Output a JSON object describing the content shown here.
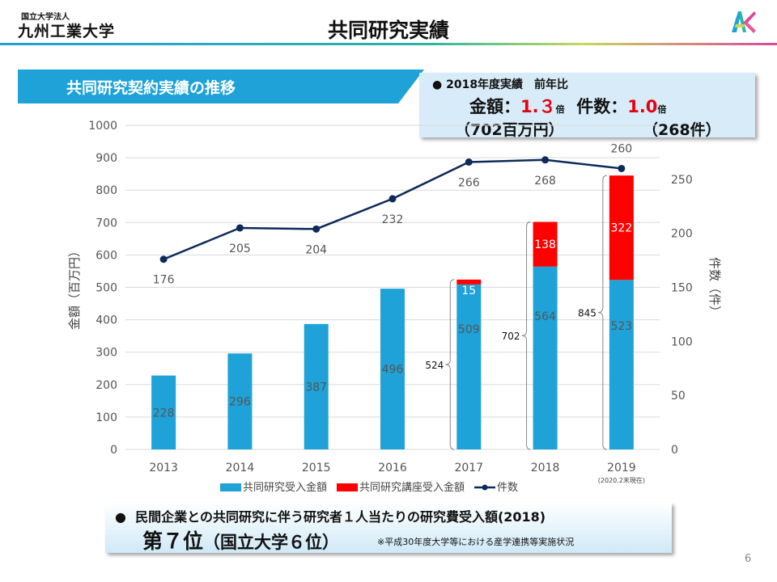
{
  "header": {
    "logo_small": "国立大学法人",
    "logo_main": "九州工業大学",
    "title": "共同研究実績"
  },
  "section": {
    "title": "共同研究契約実績の推移"
  },
  "stats": {
    "line1": "2018年度実績　前年比",
    "amount_label": "金額：",
    "amount_value": "1.３",
    "amount_unit": "倍",
    "count_label": "件数：",
    "count_value": "1.0",
    "count_unit": "倍",
    "amount_detail": "（702百万円）",
    "count_detail": "（268件）"
  },
  "ranking": {
    "line1": "民間企業との共同研究に伴う研究者１人当たりの研究費受入額(2018)",
    "rank": "第７位",
    "rank_sub": "（国立大学６位）",
    "note": "※平成30年度大学等における産学連携等実施状況"
  },
  "page_number": "6",
  "chart_data": {
    "type": "bar",
    "categories": [
      "2013",
      "2014",
      "2015",
      "2016",
      "2017",
      "2018",
      "2019"
    ],
    "category_note": {
      "2019": "(2020.2末現在)"
    },
    "series": [
      {
        "name": "共同研究受入金額",
        "type": "bar",
        "axis": "left",
        "color": "#1ea2d8",
        "values": [
          228,
          296,
          387,
          496,
          509,
          564,
          523
        ]
      },
      {
        "name": "共同研究講座受入金額",
        "type": "bar",
        "axis": "left",
        "color": "#ff0000",
        "values": [
          0,
          0,
          0,
          0,
          15,
          138,
          322
        ]
      },
      {
        "name": "件数",
        "type": "line",
        "axis": "right",
        "color": "#0e2a5a",
        "values": [
          176,
          205,
          204,
          232,
          266,
          268,
          260
        ]
      }
    ],
    "totals": {
      "2017": 524,
      "2018": 702,
      "2019": 845
    },
    "ylabel": "金額（百万円）",
    "y2label": "件数（件）",
    "ylim": [
      0,
      1000
    ],
    "yticks": [
      0,
      100,
      200,
      300,
      400,
      500,
      600,
      700,
      800,
      900,
      1000
    ],
    "y2lim": [
      0,
      300
    ],
    "y2ticks": [
      0,
      50,
      100,
      150,
      200,
      250
    ],
    "grid": true,
    "legend": "bottom",
    "stacked": true
  }
}
